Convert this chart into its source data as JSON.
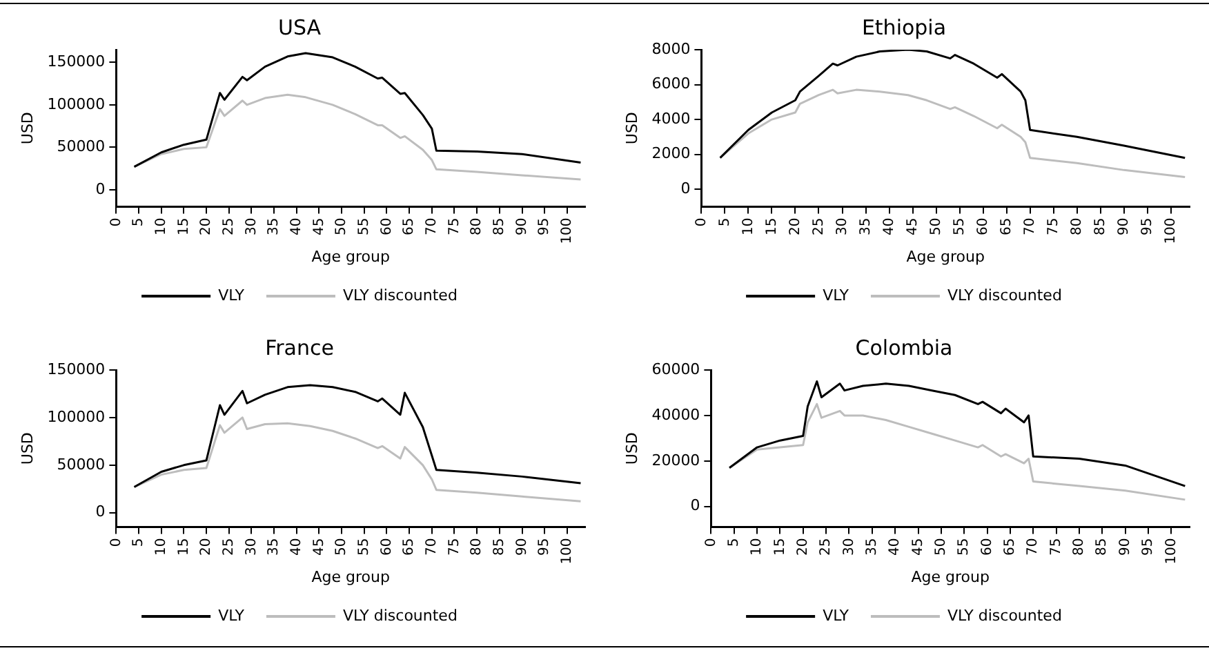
{
  "chart_data": [
    {
      "type": "line",
      "title": "USA",
      "xlabel": "Age group",
      "ylabel": "USD",
      "xlim": [
        0,
        104
      ],
      "xticks": [
        0,
        5,
        10,
        15,
        20,
        25,
        30,
        35,
        40,
        45,
        50,
        55,
        60,
        65,
        70,
        75,
        80,
        85,
        90,
        95,
        100
      ],
      "ylim": [
        -20000,
        165000
      ],
      "yticks": [
        0,
        50000,
        100000,
        150000
      ],
      "grid": false,
      "legend": "bottom",
      "marker": "none",
      "x": [
        4,
        10,
        15,
        20,
        23,
        24,
        28,
        29,
        33,
        38,
        42,
        48,
        53,
        58,
        59,
        63,
        64,
        68,
        70,
        71,
        80,
        90,
        103
      ],
      "series": [
        {
          "name": "VLY",
          "color": "#000000",
          "values": [
            27000,
            44000,
            53000,
            59000,
            114000,
            106000,
            133000,
            129000,
            145000,
            157000,
            161000,
            156000,
            145000,
            131000,
            132000,
            113000,
            114000,
            88000,
            72000,
            46000,
            45000,
            42000,
            32000
          ]
        },
        {
          "name": "VLY discounted",
          "color": "#bdbdbd",
          "values": [
            27000,
            42000,
            48000,
            50000,
            95000,
            87000,
            105000,
            100000,
            108000,
            112000,
            109000,
            100000,
            89000,
            76000,
            76000,
            61000,
            63000,
            47000,
            35000,
            24000,
            21000,
            17000,
            12000
          ]
        }
      ]
    },
    {
      "type": "line",
      "title": "Ethiopia",
      "xlabel": "Age group",
      "ylabel": "USD",
      "xlim": [
        0,
        104
      ],
      "xticks": [
        0,
        5,
        10,
        15,
        20,
        25,
        30,
        35,
        40,
        45,
        50,
        55,
        60,
        65,
        70,
        75,
        80,
        85,
        90,
        95,
        100
      ],
      "ylim": [
        -1000,
        8000
      ],
      "yticks": [
        0,
        2000,
        4000,
        6000,
        8000
      ],
      "grid": false,
      "legend": "bottom",
      "marker": "none",
      "x": [
        4,
        10,
        15,
        20,
        21,
        25,
        28,
        29,
        33,
        38,
        44,
        48,
        53,
        54,
        58,
        63,
        64,
        68,
        69,
        70,
        80,
        90,
        103
      ],
      "series": [
        {
          "name": "VLY",
          "color": "#000000",
          "values": [
            1800,
            3400,
            4400,
            5100,
            5600,
            6500,
            7200,
            7100,
            7600,
            7900,
            8000,
            7900,
            7500,
            7700,
            7200,
            6400,
            6600,
            5600,
            5100,
            3400,
            3000,
            2500,
            1800
          ]
        },
        {
          "name": "VLY discounted",
          "color": "#bdbdbd",
          "values": [
            1800,
            3200,
            4000,
            4400,
            4900,
            5400,
            5700,
            5500,
            5700,
            5600,
            5400,
            5100,
            4600,
            4700,
            4200,
            3500,
            3700,
            3000,
            2700,
            1800,
            1500,
            1100,
            700
          ]
        }
      ]
    },
    {
      "type": "line",
      "title": "France",
      "xlabel": "Age group",
      "ylabel": "USD",
      "xlim": [
        0,
        104
      ],
      "xticks": [
        0,
        5,
        10,
        15,
        20,
        25,
        30,
        35,
        40,
        45,
        50,
        55,
        60,
        65,
        70,
        75,
        80,
        85,
        90,
        95,
        100
      ],
      "ylim": [
        -15000,
        150000
      ],
      "yticks": [
        0,
        50000,
        100000,
        150000
      ],
      "grid": false,
      "legend": "bottom",
      "marker": "none",
      "x": [
        4,
        10,
        15,
        20,
        23,
        24,
        28,
        29,
        33,
        38,
        43,
        48,
        53,
        58,
        59,
        63,
        64,
        68,
        70,
        71,
        80,
        90,
        103
      ],
      "series": [
        {
          "name": "VLY",
          "color": "#000000",
          "values": [
            27000,
            43000,
            50000,
            55000,
            113000,
            103000,
            128000,
            115000,
            124000,
            132000,
            134000,
            132000,
            127000,
            117000,
            120000,
            103000,
            126000,
            90000,
            60000,
            45000,
            42000,
            38000,
            31000
          ]
        },
        {
          "name": "VLY discounted",
          "color": "#bdbdbd",
          "values": [
            27000,
            40000,
            45000,
            47000,
            92000,
            84000,
            100000,
            88000,
            93000,
            94000,
            91000,
            86000,
            78000,
            68000,
            70000,
            57000,
            69000,
            50000,
            35000,
            24000,
            21000,
            17000,
            12000
          ]
        }
      ]
    },
    {
      "type": "line",
      "title": "Colombia",
      "xlabel": "Age group",
      "ylabel": "USD",
      "xlim": [
        0,
        104
      ],
      "xticks": [
        0,
        5,
        10,
        15,
        20,
        25,
        30,
        35,
        40,
        45,
        50,
        55,
        60,
        65,
        70,
        75,
        80,
        85,
        90,
        95,
        100
      ],
      "ylim": [
        -9000,
        60000
      ],
      "yticks": [
        0,
        20000,
        40000,
        60000
      ],
      "grid": false,
      "legend": "bottom",
      "marker": "none",
      "x": [
        4,
        10,
        15,
        20,
        21,
        23,
        24,
        28,
        29,
        33,
        38,
        43,
        48,
        53,
        58,
        59,
        63,
        64,
        68,
        69,
        70,
        80,
        90,
        103
      ],
      "series": [
        {
          "name": "VLY",
          "color": "#000000",
          "values": [
            17000,
            26000,
            29000,
            31000,
            44000,
            55000,
            48000,
            54000,
            51000,
            53000,
            54000,
            53000,
            51000,
            49000,
            45000,
            46000,
            41000,
            43000,
            37000,
            40000,
            22000,
            21000,
            18000,
            9000
          ]
        },
        {
          "name": "VLY discounted",
          "color": "#bdbdbd",
          "values": [
            17000,
            25000,
            26000,
            27000,
            37000,
            45000,
            39000,
            42000,
            40000,
            40000,
            38000,
            35000,
            32000,
            29000,
            26000,
            27000,
            22000,
            23000,
            19000,
            21000,
            11000,
            9000,
            7000,
            3000
          ]
        }
      ]
    }
  ]
}
